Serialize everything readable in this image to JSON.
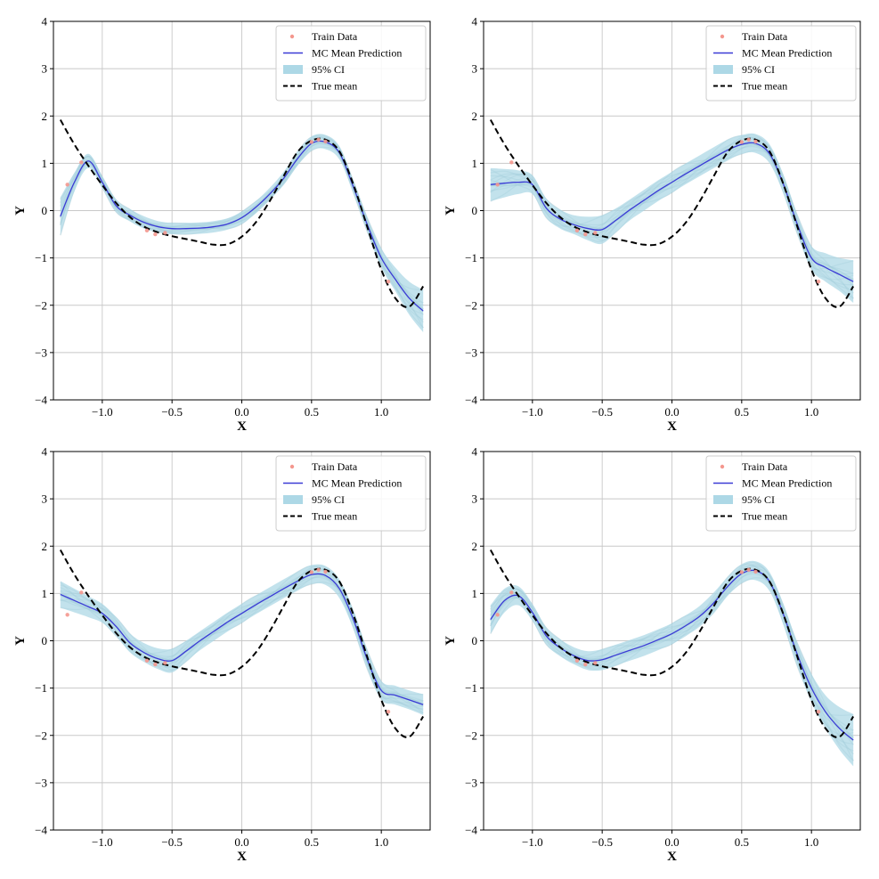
{
  "figure": {
    "layout": "2x2 grid of regression panels"
  },
  "colors": {
    "train": "#f4978e",
    "mean": "#3b3bd6",
    "ci": "#add8e6",
    "samples": "#7fa9b6",
    "true_mean": "#000000",
    "grid": "#c8c8c8"
  },
  "chart_data": [
    {
      "type": "line",
      "panel": "top-left",
      "xlabel": "X",
      "ylabel": "Y",
      "xlim": [
        -1.35,
        1.35
      ],
      "ylim": [
        -4,
        4
      ],
      "xticks": [
        -1.0,
        -0.5,
        0.0,
        0.5,
        1.0
      ],
      "xtick_labels": [
        "−1.0",
        "−0.5",
        "0.0",
        "0.5",
        "1.0"
      ],
      "yticks": [
        -4,
        -3,
        -2,
        -1,
        0,
        1,
        2,
        3,
        4
      ],
      "ytick_labels": [
        "−4",
        "−3",
        "−2",
        "−1",
        "0",
        "1",
        "2",
        "3",
        "4"
      ],
      "grid": true,
      "legend": {
        "placement": "top-right",
        "labels": [
          "Train Data",
          "MC Mean Prediction",
          "95% CI",
          "True mean"
        ]
      },
      "x": [
        -1.3,
        -1.2,
        -1.1,
        -1.0,
        -0.9,
        -0.8,
        -0.7,
        -0.6,
        -0.5,
        -0.4,
        -0.3,
        -0.2,
        -0.1,
        0.0,
        0.1,
        0.2,
        0.3,
        0.4,
        0.5,
        0.6,
        0.7,
        0.8,
        0.9,
        1.0,
        1.1,
        1.2,
        1.3
      ],
      "true_mean": [
        1.92,
        1.4,
        0.95,
        0.54,
        0.16,
        -0.14,
        -0.34,
        -0.46,
        -0.54,
        -0.6,
        -0.66,
        -0.72,
        -0.71,
        -0.55,
        -0.25,
        0.2,
        0.73,
        1.24,
        1.48,
        1.5,
        1.25,
        0.55,
        -0.35,
        -1.25,
        -1.85,
        -2.03,
        -1.6
      ],
      "mc_mean": [
        -0.12,
        0.6,
        1.05,
        0.6,
        0.1,
        -0.1,
        -0.25,
        -0.34,
        -0.38,
        -0.38,
        -0.37,
        -0.34,
        -0.28,
        -0.15,
        0.07,
        0.35,
        0.68,
        1.1,
        1.42,
        1.45,
        1.22,
        0.5,
        -0.3,
        -1.0,
        -1.45,
        -1.85,
        -2.12
      ],
      "ci_halfwidth": [
        0.4,
        0.2,
        0.15,
        0.13,
        0.13,
        0.13,
        0.13,
        0.12,
        0.12,
        0.12,
        0.12,
        0.12,
        0.12,
        0.13,
        0.13,
        0.13,
        0.14,
        0.15,
        0.15,
        0.15,
        0.14,
        0.14,
        0.15,
        0.2,
        0.25,
        0.35,
        0.45
      ],
      "train_x": [
        -1.25,
        -1.15,
        -0.68,
        -0.62,
        -0.55,
        0.5,
        0.55,
        0.6,
        1.05
      ],
      "train_y": [
        0.55,
        1.02,
        -0.42,
        -0.5,
        -0.47,
        1.45,
        1.5,
        1.46,
        -1.5
      ]
    },
    {
      "type": "line",
      "panel": "top-right",
      "xlabel": "X",
      "ylabel": "Y",
      "xlim": [
        -1.35,
        1.35
      ],
      "ylim": [
        -4,
        4
      ],
      "xticks": [
        -1.0,
        -0.5,
        0.0,
        0.5,
        1.0
      ],
      "xtick_labels": [
        "−1.0",
        "−0.5",
        "0.0",
        "0.5",
        "1.0"
      ],
      "yticks": [
        -4,
        -3,
        -2,
        -1,
        0,
        1,
        2,
        3,
        4
      ],
      "ytick_labels": [
        "−4",
        "−3",
        "−2",
        "−1",
        "0",
        "1",
        "2",
        "3",
        "4"
      ],
      "grid": true,
      "legend": {
        "placement": "top-right",
        "labels": [
          "Train Data",
          "MC Mean Prediction",
          "95% CI",
          "True mean"
        ]
      },
      "x": [
        -1.3,
        -1.2,
        -1.1,
        -1.0,
        -0.9,
        -0.8,
        -0.7,
        -0.6,
        -0.5,
        -0.4,
        -0.3,
        -0.2,
        -0.1,
        0.0,
        0.1,
        0.2,
        0.3,
        0.4,
        0.5,
        0.6,
        0.7,
        0.8,
        0.9,
        1.0,
        1.1,
        1.2,
        1.3
      ],
      "true_mean": [
        1.92,
        1.4,
        0.95,
        0.54,
        0.16,
        -0.14,
        -0.34,
        -0.46,
        -0.54,
        -0.6,
        -0.66,
        -0.72,
        -0.71,
        -0.55,
        -0.25,
        0.2,
        0.73,
        1.24,
        1.48,
        1.5,
        1.25,
        0.55,
        -0.35,
        -1.25,
        -1.85,
        -2.03,
        -1.6
      ],
      "mc_mean": [
        0.55,
        0.58,
        0.6,
        0.55,
        0.05,
        -0.18,
        -0.3,
        -0.38,
        -0.4,
        -0.2,
        0.02,
        0.22,
        0.42,
        0.6,
        0.78,
        0.95,
        1.12,
        1.28,
        1.4,
        1.42,
        1.2,
        0.55,
        -0.3,
        -1.0,
        -1.2,
        -1.35,
        -1.5
      ],
      "ci_halfwidth": [
        0.35,
        0.3,
        0.25,
        0.2,
        0.2,
        0.2,
        0.2,
        0.25,
        0.3,
        0.25,
        0.22,
        0.22,
        0.22,
        0.22,
        0.22,
        0.22,
        0.22,
        0.22,
        0.2,
        0.2,
        0.2,
        0.2,
        0.2,
        0.25,
        0.3,
        0.35,
        0.45
      ],
      "train_x": [
        -1.25,
        -1.15,
        -0.68,
        -0.62,
        -0.55,
        0.5,
        0.55,
        0.6,
        1.05
      ],
      "train_y": [
        0.55,
        1.02,
        -0.42,
        -0.5,
        -0.47,
        1.45,
        1.5,
        1.46,
        -1.5
      ]
    },
    {
      "type": "line",
      "panel": "bottom-left",
      "xlabel": "X",
      "ylabel": "Y",
      "xlim": [
        -1.35,
        1.35
      ],
      "ylim": [
        -4,
        4
      ],
      "xticks": [
        -1.0,
        -0.5,
        0.0,
        0.5,
        1.0
      ],
      "xtick_labels": [
        "−1.0",
        "−0.5",
        "0.0",
        "0.5",
        "1.0"
      ],
      "yticks": [
        -4,
        -3,
        -2,
        -1,
        0,
        1,
        2,
        3,
        4
      ],
      "ytick_labels": [
        "−4",
        "−3",
        "−2",
        "−1",
        "0",
        "1",
        "2",
        "3",
        "4"
      ],
      "grid": true,
      "legend": {
        "placement": "top-right",
        "labels": [
          "Train Data",
          "MC Mean Prediction",
          "95% CI",
          "True mean"
        ]
      },
      "x": [
        -1.3,
        -1.2,
        -1.1,
        -1.0,
        -0.9,
        -0.8,
        -0.7,
        -0.6,
        -0.5,
        -0.4,
        -0.3,
        -0.2,
        -0.1,
        0.0,
        0.1,
        0.2,
        0.3,
        0.4,
        0.5,
        0.6,
        0.7,
        0.8,
        0.9,
        1.0,
        1.1,
        1.2,
        1.3
      ],
      "true_mean": [
        1.92,
        1.4,
        0.95,
        0.54,
        0.16,
        -0.14,
        -0.34,
        -0.46,
        -0.54,
        -0.6,
        -0.66,
        -0.72,
        -0.71,
        -0.55,
        -0.25,
        0.2,
        0.73,
        1.24,
        1.48,
        1.5,
        1.25,
        0.55,
        -0.35,
        -1.25,
        -1.85,
        -2.03,
        -1.6
      ],
      "mc_mean": [
        0.98,
        0.85,
        0.72,
        0.58,
        0.3,
        -0.05,
        -0.25,
        -0.38,
        -0.42,
        -0.22,
        0.0,
        0.2,
        0.4,
        0.58,
        0.76,
        0.93,
        1.1,
        1.26,
        1.4,
        1.38,
        1.1,
        0.45,
        -0.4,
        -1.05,
        -1.15,
        -1.25,
        -1.35
      ],
      "ci_halfwidth": [
        0.28,
        0.25,
        0.22,
        0.2,
        0.2,
        0.2,
        0.2,
        0.22,
        0.25,
        0.22,
        0.2,
        0.2,
        0.2,
        0.2,
        0.2,
        0.2,
        0.2,
        0.2,
        0.2,
        0.2,
        0.2,
        0.2,
        0.2,
        0.2,
        0.2,
        0.2,
        0.22
      ],
      "train_x": [
        -1.25,
        -1.15,
        -0.68,
        -0.62,
        -0.55,
        0.5,
        0.55,
        0.6,
        1.05
      ],
      "train_y": [
        0.55,
        1.02,
        -0.42,
        -0.5,
        -0.47,
        1.45,
        1.5,
        1.46,
        -1.5
      ]
    },
    {
      "type": "line",
      "panel": "bottom-right",
      "xlabel": "X",
      "ylabel": "Y",
      "xlim": [
        -1.35,
        1.35
      ],
      "ylim": [
        -4,
        4
      ],
      "xticks": [
        -1.0,
        -0.5,
        0.0,
        0.5,
        1.0
      ],
      "xtick_labels": [
        "−1.0",
        "−0.5",
        "0.0",
        "0.5",
        "1.0"
      ],
      "yticks": [
        -4,
        -3,
        -2,
        -1,
        0,
        1,
        2,
        3,
        4
      ],
      "ytick_labels": [
        "−4",
        "−3",
        "−2",
        "−1",
        "0",
        "1",
        "2",
        "3",
        "4"
      ],
      "grid": true,
      "legend": {
        "placement": "top-right",
        "labels": [
          "Train Data",
          "MC Mean Prediction",
          "95% CI",
          "True mean"
        ]
      },
      "x": [
        -1.3,
        -1.2,
        -1.1,
        -1.0,
        -0.9,
        -0.8,
        -0.7,
        -0.6,
        -0.5,
        -0.4,
        -0.3,
        -0.2,
        -0.1,
        0.0,
        0.1,
        0.2,
        0.3,
        0.4,
        0.5,
        0.6,
        0.7,
        0.8,
        0.9,
        1.0,
        1.1,
        1.2,
        1.3
      ],
      "true_mean": [
        1.92,
        1.4,
        0.95,
        0.54,
        0.16,
        -0.14,
        -0.34,
        -0.46,
        -0.54,
        -0.6,
        -0.66,
        -0.72,
        -0.71,
        -0.55,
        -0.25,
        0.2,
        0.73,
        1.24,
        1.48,
        1.5,
        1.25,
        0.55,
        -0.35,
        -1.25,
        -1.85,
        -2.03,
        -1.6
      ],
      "mc_mean": [
        0.45,
        0.85,
        0.95,
        0.6,
        0.1,
        -0.15,
        -0.32,
        -0.42,
        -0.4,
        -0.3,
        -0.2,
        -0.1,
        0.02,
        0.15,
        0.32,
        0.52,
        0.8,
        1.15,
        1.42,
        1.48,
        1.25,
        0.55,
        -0.3,
        -1.0,
        -1.5,
        -1.85,
        -2.1
      ],
      "ci_halfwidth": [
        0.3,
        0.25,
        0.2,
        0.18,
        0.18,
        0.18,
        0.18,
        0.2,
        0.22,
        0.22,
        0.22,
        0.22,
        0.22,
        0.22,
        0.22,
        0.22,
        0.22,
        0.2,
        0.2,
        0.2,
        0.2,
        0.22,
        0.25,
        0.3,
        0.35,
        0.45,
        0.55
      ],
      "train_x": [
        -1.25,
        -1.15,
        -0.68,
        -0.62,
        -0.55,
        0.5,
        0.55,
        0.6,
        1.05
      ],
      "train_y": [
        0.55,
        1.02,
        -0.42,
        -0.5,
        -0.47,
        1.45,
        1.5,
        1.46,
        -1.5
      ]
    }
  ]
}
